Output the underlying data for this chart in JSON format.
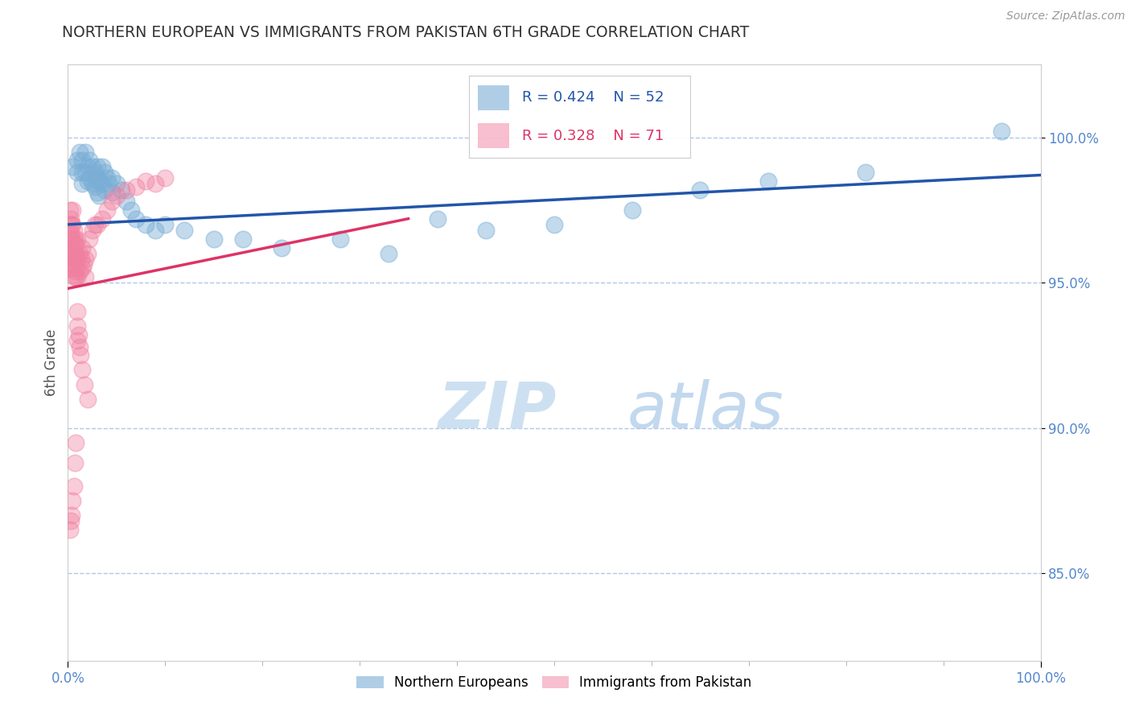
{
  "title": "NORTHERN EUROPEAN VS IMMIGRANTS FROM PAKISTAN 6TH GRADE CORRELATION CHART",
  "source_text": "Source: ZipAtlas.com",
  "ylabel": "6th Grade",
  "blue_label": "Northern Europeans",
  "pink_label": "Immigrants from Pakistan",
  "blue_R": 0.424,
  "blue_N": 52,
  "pink_R": 0.328,
  "pink_N": 71,
  "blue_color": "#7aaed6",
  "pink_color": "#f080a0",
  "blue_line_color": "#2255aa",
  "pink_line_color": "#dd3366",
  "title_color": "#333333",
  "axis_label_color": "#555555",
  "tick_color": "#5588cc",
  "grid_color": "#b0c8e8",
  "source_color": "#999999",
  "watermark_zip_color": "#c8ddf0",
  "watermark_atlas_color": "#a8c8e8",
  "xlim": [
    0.0,
    1.0
  ],
  "ylim": [
    0.82,
    1.025
  ],
  "yticks": [
    0.85,
    0.9,
    0.95,
    1.0
  ],
  "ytick_labels": [
    "85.0%",
    "90.0%",
    "95.0%",
    "100.0%"
  ],
  "xtick_labels": [
    "0.0%",
    "100.0%"
  ],
  "xtick_positions": [
    0.0,
    1.0
  ],
  "blue_x": [
    0.005,
    0.01,
    0.01,
    0.012,
    0.015,
    0.015,
    0.015,
    0.018,
    0.018,
    0.02,
    0.02,
    0.022,
    0.022,
    0.025,
    0.025,
    0.028,
    0.028,
    0.03,
    0.03,
    0.03,
    0.032,
    0.032,
    0.035,
    0.035,
    0.038,
    0.038,
    0.04,
    0.042,
    0.045,
    0.045,
    0.05,
    0.055,
    0.06,
    0.065,
    0.07,
    0.08,
    0.09,
    0.1,
    0.12,
    0.15,
    0.18,
    0.22,
    0.28,
    0.33,
    0.38,
    0.43,
    0.5,
    0.58,
    0.65,
    0.72,
    0.82,
    0.96
  ],
  "blue_y": [
    0.99,
    0.992,
    0.988,
    0.995,
    0.992,
    0.988,
    0.984,
    0.995,
    0.988,
    0.99,
    0.985,
    0.992,
    0.986,
    0.99,
    0.984,
    0.988,
    0.983,
    0.99,
    0.986,
    0.981,
    0.985,
    0.98,
    0.99,
    0.984,
    0.988,
    0.982,
    0.986,
    0.984,
    0.986,
    0.981,
    0.984,
    0.982,
    0.978,
    0.975,
    0.972,
    0.97,
    0.968,
    0.97,
    0.968,
    0.965,
    0.965,
    0.962,
    0.965,
    0.96,
    0.972,
    0.968,
    0.97,
    0.975,
    0.982,
    0.985,
    0.988,
    1.002
  ],
  "pink_x": [
    0.002,
    0.002,
    0.002,
    0.002,
    0.002,
    0.003,
    0.003,
    0.003,
    0.003,
    0.004,
    0.004,
    0.004,
    0.004,
    0.005,
    0.005,
    0.005,
    0.005,
    0.005,
    0.006,
    0.006,
    0.006,
    0.006,
    0.007,
    0.007,
    0.007,
    0.008,
    0.008,
    0.008,
    0.009,
    0.009,
    0.01,
    0.01,
    0.01,
    0.012,
    0.012,
    0.014,
    0.015,
    0.015,
    0.016,
    0.018,
    0.018,
    0.02,
    0.022,
    0.025,
    0.028,
    0.03,
    0.035,
    0.04,
    0.045,
    0.05,
    0.06,
    0.07,
    0.08,
    0.09,
    0.1,
    0.01,
    0.01,
    0.01,
    0.011,
    0.012,
    0.013,
    0.015,
    0.017,
    0.02,
    0.008,
    0.007,
    0.006,
    0.005,
    0.004,
    0.003,
    0.002
  ],
  "pink_y": [
    0.975,
    0.97,
    0.965,
    0.96,
    0.955,
    0.972,
    0.967,
    0.962,
    0.957,
    0.97,
    0.965,
    0.96,
    0.955,
    0.975,
    0.97,
    0.965,
    0.96,
    0.955,
    0.968,
    0.963,
    0.958,
    0.952,
    0.965,
    0.96,
    0.954,
    0.963,
    0.958,
    0.952,
    0.96,
    0.955,
    0.965,
    0.958,
    0.952,
    0.96,
    0.954,
    0.958,
    0.962,
    0.955,
    0.956,
    0.958,
    0.952,
    0.96,
    0.965,
    0.968,
    0.97,
    0.97,
    0.972,
    0.975,
    0.978,
    0.98,
    0.982,
    0.983,
    0.985,
    0.984,
    0.986,
    0.94,
    0.935,
    0.93,
    0.932,
    0.928,
    0.925,
    0.92,
    0.915,
    0.91,
    0.895,
    0.888,
    0.88,
    0.875,
    0.87,
    0.868,
    0.865
  ],
  "blue_trendline_x": [
    0.0,
    1.0
  ],
  "blue_trendline_y": [
    0.97,
    0.987
  ],
  "pink_trendline_x": [
    0.0,
    0.35
  ],
  "pink_trendline_y": [
    0.948,
    0.972
  ]
}
